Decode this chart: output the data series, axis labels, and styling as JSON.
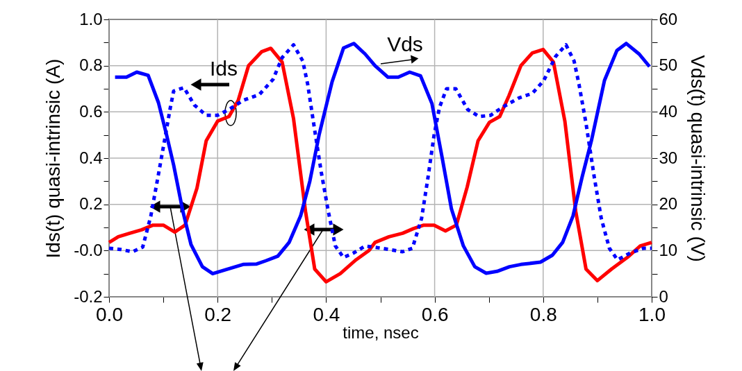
{
  "chart_data": {
    "type": "line",
    "xlabel": "time, nsec",
    "ylabel": "Ids(t) quasi-intrinsic (A)",
    "y2label": "Vds(t) quasi-intrinsic (V)",
    "annotations": [
      "Ids",
      "Vds"
    ],
    "series": [
      {
        "color": "#ff0000",
        "line_style": "solid",
        "x": [
          0.0,
          0.017,
          0.038,
          0.06,
          0.081,
          0.1,
          0.121,
          0.14,
          0.162,
          0.179,
          0.2,
          0.221,
          0.238,
          0.257,
          0.281,
          0.298,
          0.319,
          0.34,
          0.362,
          0.379,
          0.4,
          0.426,
          0.455,
          0.479,
          0.49,
          0.516,
          0.541,
          0.561,
          0.58,
          0.599,
          0.62,
          0.64,
          0.66,
          0.68,
          0.701,
          0.72,
          0.737,
          0.759,
          0.78,
          0.8,
          0.819,
          0.84,
          0.86,
          0.879,
          0.9,
          0.926,
          0.955,
          0.979,
          1.0
        ],
        "values": [
          0.035,
          0.06,
          0.075,
          0.09,
          0.11,
          0.11,
          0.08,
          0.11,
          0.27,
          0.475,
          0.56,
          0.58,
          0.65,
          0.8,
          0.86,
          0.875,
          0.815,
          0.57,
          0.17,
          -0.08,
          -0.135,
          -0.1,
          -0.04,
          0.0,
          0.035,
          0.06,
          0.075,
          0.095,
          0.11,
          0.11,
          0.085,
          0.11,
          0.275,
          0.475,
          0.555,
          0.58,
          0.67,
          0.8,
          0.855,
          0.87,
          0.815,
          0.56,
          0.17,
          -0.08,
          -0.13,
          -0.08,
          -0.03,
          0.02,
          0.035
        ]
      },
      {
        "color": "#0000ff",
        "line_style": "dotted",
        "x": [
          0.0,
          0.021,
          0.043,
          0.062,
          0.077,
          0.091,
          0.104,
          0.113,
          0.119,
          0.138,
          0.157,
          0.179,
          0.2,
          0.221,
          0.247,
          0.277,
          0.302,
          0.319,
          0.34,
          0.357,
          0.366,
          0.379,
          0.391,
          0.404,
          0.417,
          0.432,
          0.451,
          0.472,
          0.502,
          0.516,
          0.541,
          0.559,
          0.576,
          0.588,
          0.599,
          0.609,
          0.622,
          0.639,
          0.661,
          0.682,
          0.703,
          0.725,
          0.755,
          0.78,
          0.801,
          0.823,
          0.842,
          0.857,
          0.866,
          0.879,
          0.894,
          0.907,
          0.922,
          0.937,
          0.961,
          0.985,
          1.0
        ],
        "values": [
          0.01,
          0.005,
          -0.005,
          0.015,
          0.15,
          0.33,
          0.5,
          0.62,
          0.69,
          0.705,
          0.63,
          0.585,
          0.585,
          0.61,
          0.65,
          0.675,
          0.74,
          0.835,
          0.89,
          0.82,
          0.72,
          0.52,
          0.34,
          0.17,
          0.02,
          -0.03,
          -0.01,
          0.02,
          0.01,
          0.005,
          -0.005,
          0.01,
          0.14,
          0.32,
          0.5,
          0.62,
          0.7,
          0.7,
          0.61,
          0.58,
          0.585,
          0.62,
          0.66,
          0.68,
          0.735,
          0.84,
          0.89,
          0.82,
          0.72,
          0.55,
          0.32,
          0.14,
          0.01,
          -0.04,
          -0.01,
          0.01,
          0.01
        ]
      },
      {
        "color": "#0000ff",
        "line_style": "solid",
        "axis": "y2",
        "x": [
          0.011,
          0.032,
          0.051,
          0.072,
          0.091,
          0.106,
          0.119,
          0.136,
          0.151,
          0.172,
          0.191,
          0.213,
          0.247,
          0.272,
          0.289,
          0.311,
          0.332,
          0.353,
          0.37,
          0.387,
          0.411,
          0.432,
          0.451,
          0.472,
          0.49,
          0.514,
          0.533,
          0.554,
          0.574,
          0.595,
          0.614,
          0.631,
          0.653,
          0.674,
          0.695,
          0.715,
          0.738,
          0.759,
          0.795,
          0.817,
          0.836,
          0.855,
          0.872,
          0.889,
          0.913,
          0.936,
          0.953,
          0.977,
          0.996
        ],
        "values": [
          47.5,
          47.5,
          48.6,
          47.9,
          42,
          35,
          28.5,
          18.5,
          11.3,
          6.5,
          5,
          5.8,
          7,
          7.1,
          7.8,
          8.8,
          11.8,
          17.5,
          25,
          35,
          46.5,
          53.8,
          54.8,
          52.5,
          50,
          47.5,
          47.5,
          48.6,
          47.8,
          41.8,
          30,
          19,
          11,
          6.5,
          5.1,
          5.5,
          6.5,
          7,
          7.5,
          9,
          11.8,
          17.5,
          26,
          33.8,
          46.8,
          53.3,
          54.8,
          52.5,
          49.8
        ]
      }
    ],
    "xlim": [
      0,
      1
    ],
    "ylim": [
      -0.2,
      1
    ],
    "y2lim": [
      0,
      60
    ],
    "xticks": [
      {
        "value": 0,
        "label": "0.0"
      },
      {
        "value": 0.1,
        "label": null
      },
      {
        "value": 0.2,
        "label": "0.2"
      },
      {
        "value": 0.3,
        "label": null
      },
      {
        "value": 0.4,
        "label": "0.4"
      },
      {
        "value": 0.5,
        "label": null
      },
      {
        "value": 0.6,
        "label": "0.6"
      },
      {
        "value": 0.7,
        "label": null
      },
      {
        "value": 0.8,
        "label": "0.8"
      },
      {
        "value": 0.9,
        "label": null
      },
      {
        "value": 1,
        "label": "1.0"
      }
    ],
    "yticks": [
      {
        "value": -0.2,
        "label": "-0.2"
      },
      {
        "value": -0.1,
        "label": null
      },
      {
        "value": 0,
        "label": "-0.0"
      },
      {
        "value": 0.1,
        "label": null
      },
      {
        "value": 0.2,
        "label": "0.2"
      },
      {
        "value": 0.3,
        "label": null
      },
      {
        "value": 0.4,
        "label": "0.4"
      },
      {
        "value": 0.5,
        "label": null
      },
      {
        "value": 0.6,
        "label": "0.6"
      },
      {
        "value": 0.7,
        "label": null
      },
      {
        "value": 0.8,
        "label": "0.8"
      },
      {
        "value": 0.9,
        "label": null
      },
      {
        "value": 1,
        "label": "1.0"
      }
    ],
    "y2ticks": [
      0,
      {
        "value": 5,
        "label": null
      },
      10,
      {
        "value": 15,
        "label": null
      },
      20,
      {
        "value": 25,
        "label": null
      },
      30,
      {
        "value": 35,
        "label": null
      },
      40,
      {
        "value": 45,
        "label": null
      },
      50,
      {
        "value": 55,
        "label": null
      },
      60
    ],
    "grid": true,
    "marker": "none"
  }
}
